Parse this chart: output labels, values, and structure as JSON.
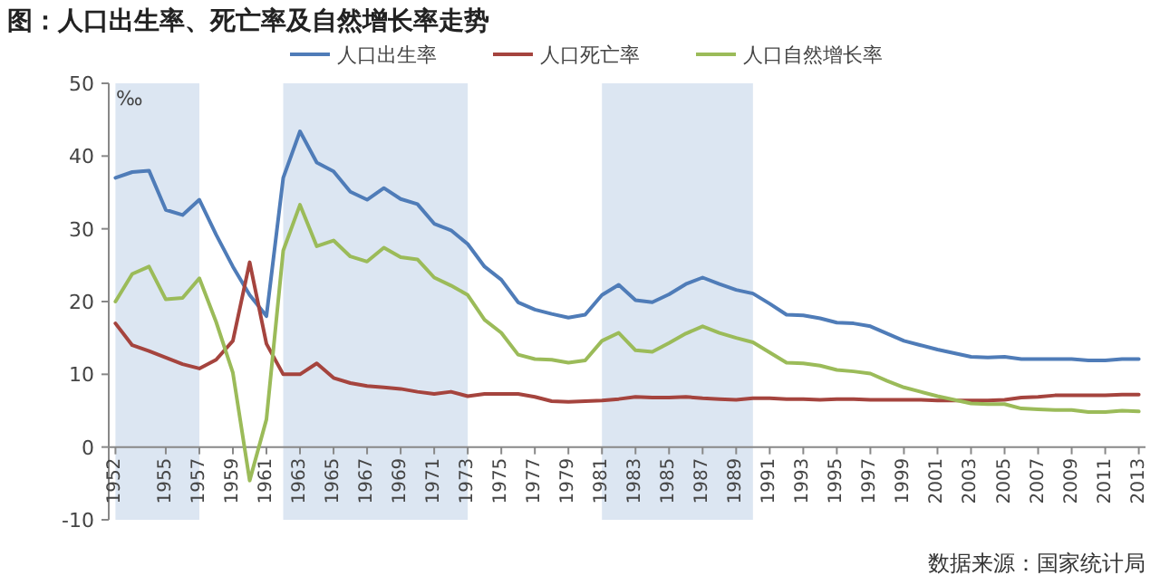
{
  "chart_data": {
    "type": "line",
    "title": "图：人口出生率、死亡率及自然增长率走势",
    "ylabel": "‰",
    "annotations": [
      "数据来源：国家统计局"
    ],
    "x": [
      1952,
      1953,
      1954,
      1955,
      1956,
      1957,
      1958,
      1959,
      1960,
      1961,
      1962,
      1963,
      1964,
      1965,
      1966,
      1967,
      1968,
      1969,
      1970,
      1971,
      1972,
      1973,
      1974,
      1975,
      1976,
      1977,
      1978,
      1979,
      1980,
      1981,
      1982,
      1983,
      1984,
      1985,
      1986,
      1987,
      1988,
      1989,
      1990,
      1991,
      1992,
      1993,
      1994,
      1995,
      1996,
      1997,
      1998,
      1999,
      2000,
      2001,
      2002,
      2003,
      2004,
      2005,
      2006,
      2007,
      2008,
      2009,
      2010,
      2011,
      2012,
      2013
    ],
    "series": [
      {
        "name": "人口出生率",
        "color": "#4f7cb8",
        "values": [
          37.0,
          37.8,
          38.0,
          32.6,
          31.9,
          34.0,
          29.2,
          24.8,
          20.9,
          18.0,
          37.0,
          43.4,
          39.1,
          37.9,
          35.1,
          34.0,
          35.6,
          34.1,
          33.4,
          30.7,
          29.8,
          27.9,
          24.8,
          23.0,
          19.9,
          18.9,
          18.3,
          17.8,
          18.2,
          20.9,
          22.3,
          20.2,
          19.9,
          21.0,
          22.4,
          23.3,
          22.4,
          21.6,
          21.1,
          19.7,
          18.2,
          18.1,
          17.7,
          17.1,
          17.0,
          16.6,
          15.6,
          14.6,
          14.0,
          13.4,
          12.9,
          12.4,
          12.3,
          12.4,
          12.1,
          12.1,
          12.1,
          12.1,
          11.9,
          11.9,
          12.1,
          12.1
        ]
      },
      {
        "name": "人口死亡率",
        "color": "#a5443e",
        "values": [
          17.0,
          14.0,
          13.2,
          12.3,
          11.4,
          10.8,
          12.0,
          14.6,
          25.4,
          14.2,
          10.0,
          10.0,
          11.5,
          9.5,
          8.8,
          8.4,
          8.2,
          8.0,
          7.6,
          7.3,
          7.6,
          7.0,
          7.3,
          7.3,
          7.3,
          6.9,
          6.3,
          6.2,
          6.3,
          6.4,
          6.6,
          6.9,
          6.8,
          6.8,
          6.9,
          6.7,
          6.6,
          6.5,
          6.7,
          6.7,
          6.6,
          6.6,
          6.5,
          6.6,
          6.6,
          6.5,
          6.5,
          6.5,
          6.5,
          6.4,
          6.4,
          6.4,
          6.4,
          6.5,
          6.8,
          6.9,
          7.1,
          7.1,
          7.1,
          7.1,
          7.2,
          7.2
        ]
      },
      {
        "name": "人口自然增长率",
        "color": "#9bbb59",
        "values": [
          20.0,
          23.8,
          24.8,
          20.3,
          20.5,
          23.2,
          17.2,
          10.2,
          -4.6,
          3.8,
          27.0,
          33.3,
          27.6,
          28.4,
          26.2,
          25.5,
          27.4,
          26.1,
          25.8,
          23.3,
          22.2,
          20.9,
          17.5,
          15.7,
          12.7,
          12.1,
          12.0,
          11.6,
          11.9,
          14.6,
          15.7,
          13.3,
          13.1,
          14.3,
          15.6,
          16.6,
          15.7,
          15.0,
          14.4,
          13.0,
          11.6,
          11.5,
          11.2,
          10.6,
          10.4,
          10.1,
          9.1,
          8.2,
          7.6,
          7.0,
          6.5,
          6.0,
          5.9,
          5.9,
          5.3,
          5.2,
          5.1,
          5.1,
          4.8,
          4.8,
          5.0,
          4.9
        ]
      }
    ],
    "xlim": [
      1951.6,
      2013.4
    ],
    "xticks": [
      1952,
      1955,
      1957,
      1959,
      1961,
      1963,
      1965,
      1967,
      1969,
      1971,
      1973,
      1975,
      1977,
      1979,
      1981,
      1983,
      1985,
      1987,
      1989,
      1991,
      1993,
      1995,
      1997,
      1999,
      2001,
      2003,
      2005,
      2007,
      2009,
      2011,
      2013
    ],
    "ylim": [
      -10,
      50
    ],
    "yticks": [
      -10,
      0,
      10,
      20,
      30,
      40,
      50
    ],
    "bands": [
      {
        "axis": "x",
        "from": 1952,
        "to": 1957,
        "color": "#dce6f2"
      },
      {
        "axis": "x",
        "from": 1962,
        "to": 1973,
        "color": "#dce6f2"
      },
      {
        "axis": "x",
        "from": 1981,
        "to": 1990,
        "color": "#dce6f2"
      }
    ],
    "legend": "top",
    "grid": false,
    "marker": "none",
    "line_style": "solid"
  }
}
